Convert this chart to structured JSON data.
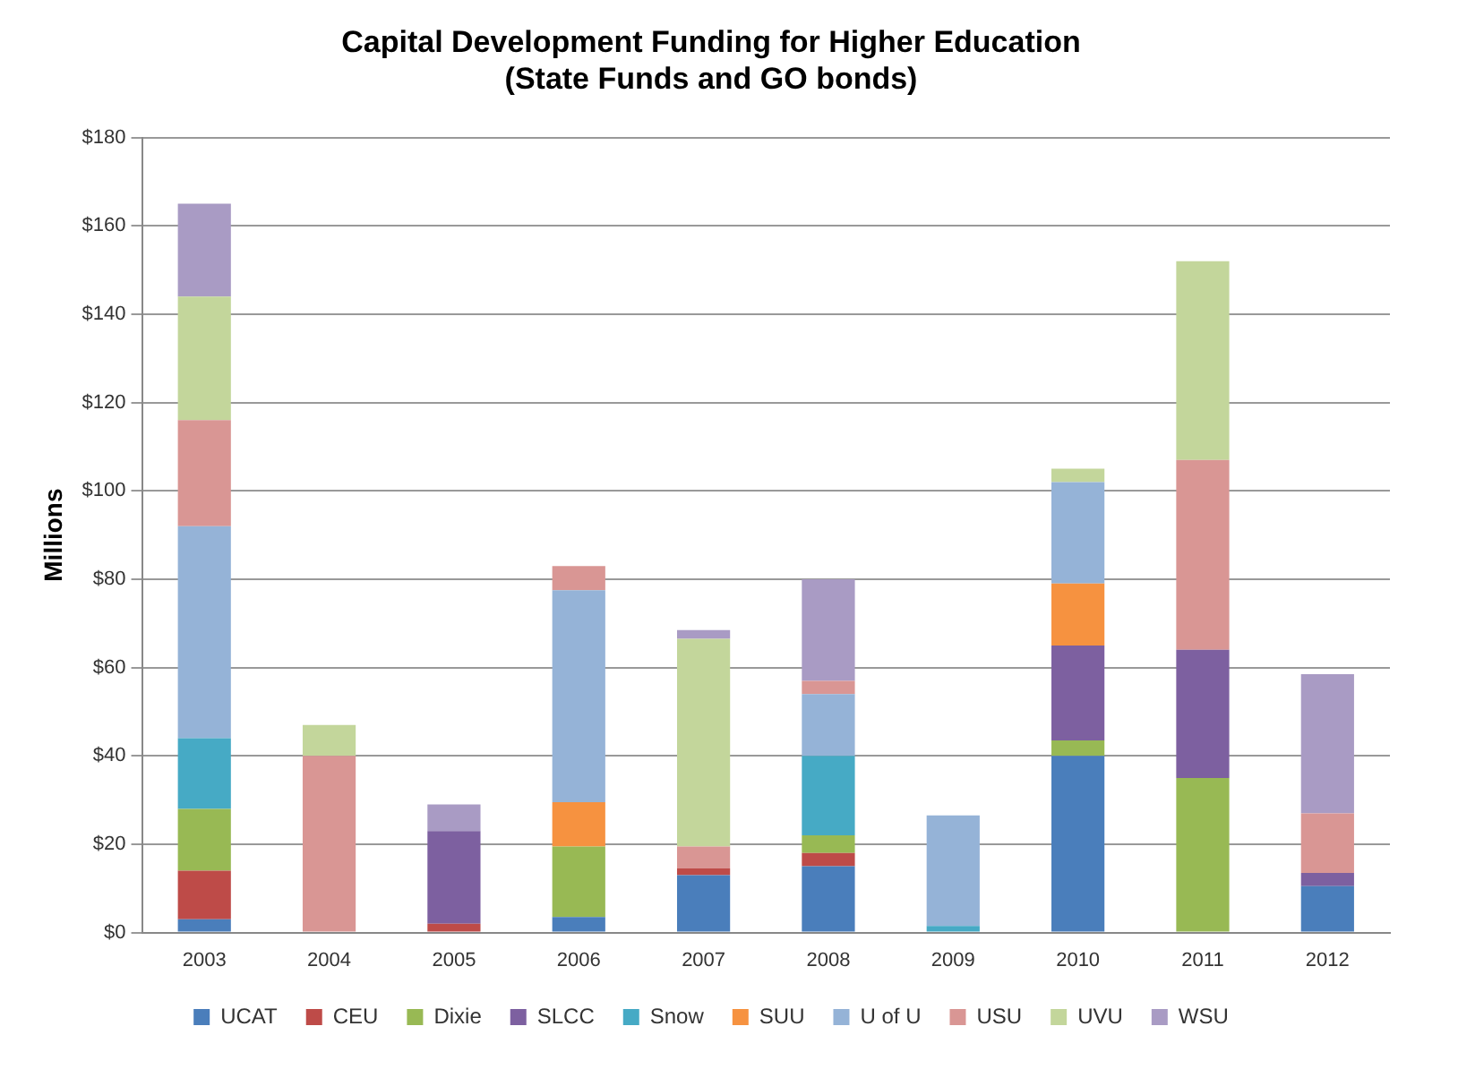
{
  "chart_data": {
    "type": "bar",
    "title": [
      "Capital Development Funding for Higher Education",
      "(State Funds and GO bonds)"
    ],
    "ylabel": "Millions",
    "stacked": true,
    "categories": [
      "2003",
      "2004",
      "2005",
      "2006",
      "2007",
      "2008",
      "2009",
      "2010",
      "2011",
      "2012"
    ],
    "series": [
      {
        "name": "UCAT",
        "color": "#4a7ebb",
        "values": [
          3,
          null,
          null,
          3.5,
          13,
          15,
          null,
          40,
          null,
          10.5
        ]
      },
      {
        "name": "CEU",
        "color": "#be4b48",
        "values": [
          11,
          null,
          2,
          null,
          1.5,
          3,
          null,
          null,
          null,
          null
        ]
      },
      {
        "name": "Dixie",
        "color": "#98b954",
        "values": [
          14,
          null,
          null,
          16,
          null,
          4,
          null,
          3.5,
          35,
          null
        ]
      },
      {
        "name": "SLCC",
        "color": "#7d60a0",
        "values": [
          null,
          null,
          21,
          null,
          null,
          null,
          null,
          21.5,
          29,
          3
        ]
      },
      {
        "name": "Snow",
        "color": "#46aac5",
        "values": [
          16,
          null,
          null,
          null,
          null,
          18,
          1.5,
          null,
          null,
          null
        ]
      },
      {
        "name": "SUU",
        "color": "#f69240",
        "values": [
          null,
          null,
          null,
          10,
          null,
          null,
          null,
          14,
          null,
          null
        ]
      },
      {
        "name": "U of U",
        "color": "#95b3d7",
        "values": [
          48,
          null,
          null,
          48,
          null,
          14,
          25,
          23,
          null,
          null
        ]
      },
      {
        "name": "USU",
        "color": "#d99694",
        "values": [
          24,
          40,
          null,
          5.5,
          5,
          3,
          null,
          null,
          43,
          13.5
        ]
      },
      {
        "name": "UVU",
        "color": "#c3d69b",
        "values": [
          28,
          7,
          null,
          null,
          47,
          null,
          null,
          3,
          45,
          null
        ]
      },
      {
        "name": "WSU",
        "color": "#a99bc4",
        "values": [
          21,
          null,
          6,
          null,
          2,
          23,
          null,
          null,
          null,
          31.5
        ]
      }
    ],
    "ylim": [
      0,
      180
    ],
    "yticks": [
      {
        "value": 0,
        "label": "$0"
      },
      {
        "value": 20,
        "label": "$20"
      },
      {
        "value": 40,
        "label": "$40"
      },
      {
        "value": 60,
        "label": "$60"
      },
      {
        "value": 80,
        "label": "$80"
      },
      {
        "value": 100,
        "label": "$100"
      },
      {
        "value": 120,
        "label": "$120"
      },
      {
        "value": 140,
        "label": "$140"
      },
      {
        "value": 160,
        "label": "$160"
      },
      {
        "value": 180,
        "label": "$180"
      }
    ],
    "grid": "y",
    "legend": "bottom"
  }
}
